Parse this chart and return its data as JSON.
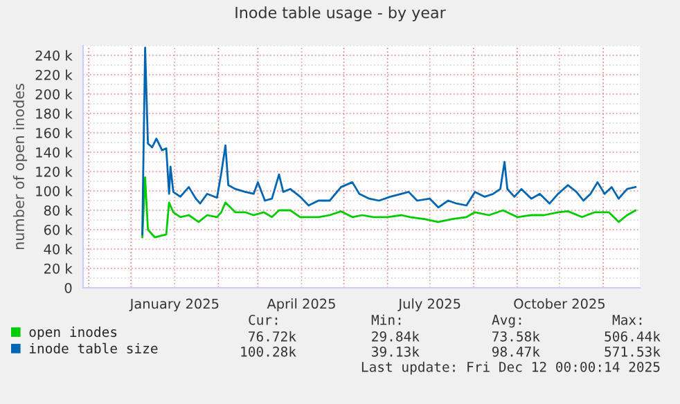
{
  "chart_data": {
    "type": "line",
    "title": "Inode table usage - by year",
    "ylabel": "number of open inodes",
    "xlim": [
      "2024-10-28",
      "2025-11-27"
    ],
    "xticks": [
      {
        "value": "2024-11-01",
        "label": null
      },
      {
        "value": "2024-12-01",
        "label": null
      },
      {
        "value": "2025-01-01",
        "label": "January 2025"
      },
      {
        "value": "2025-02-01",
        "label": null
      },
      {
        "value": "2025-03-01",
        "label": null
      },
      {
        "value": "2025-04-01",
        "label": "April 2025"
      },
      {
        "value": "2025-05-01",
        "label": null
      },
      {
        "value": "2025-06-01",
        "label": null
      },
      {
        "value": "2025-07-01",
        "label": "July 2025"
      },
      {
        "value": "2025-08-01",
        "label": null
      },
      {
        "value": "2025-09-01",
        "label": null
      },
      {
        "value": "2025-10-01",
        "label": "October 2025"
      },
      {
        "value": "2025-11-01",
        "label": null
      }
    ],
    "ylim": [
      0,
      250000
    ],
    "yticks": [
      {
        "value": 0,
        "label": "0"
      },
      {
        "value": 10000,
        "label": null
      },
      {
        "value": 20000,
        "label": "20 k"
      },
      {
        "value": 30000,
        "label": null
      },
      {
        "value": 40000,
        "label": "40 k"
      },
      {
        "value": 50000,
        "label": null
      },
      {
        "value": 60000,
        "label": "60 k"
      },
      {
        "value": 70000,
        "label": null
      },
      {
        "value": 80000,
        "label": "80 k"
      },
      {
        "value": 90000,
        "label": null
      },
      {
        "value": 100000,
        "label": "100 k"
      },
      {
        "value": 110000,
        "label": null
      },
      {
        "value": 120000,
        "label": "120 k"
      },
      {
        "value": 130000,
        "label": null
      },
      {
        "value": 140000,
        "label": "140 k"
      },
      {
        "value": 150000,
        "label": null
      },
      {
        "value": 160000,
        "label": "160 k"
      },
      {
        "value": 170000,
        "label": null
      },
      {
        "value": 180000,
        "label": "180 k"
      },
      {
        "value": 190000,
        "label": null
      },
      {
        "value": 200000,
        "label": "200 k"
      },
      {
        "value": 210000,
        "label": null
      },
      {
        "value": 220000,
        "label": "220 k"
      },
      {
        "value": 230000,
        "label": null
      },
      {
        "value": 240000,
        "label": "240 k"
      },
      {
        "value": 250000,
        "label": null
      }
    ],
    "grid": true,
    "legend": "bottom",
    "series": [
      {
        "name": "open inodes",
        "color": "#00cc00",
        "x": [
          "2024-12-09",
          "2024-12-11",
          "2024-12-13",
          "2024-12-18",
          "2024-12-23",
          "2024-12-26",
          "2024-12-28",
          "2024-12-31",
          "2025-01-05",
          "2025-01-11",
          "2025-01-18",
          "2025-01-24",
          "2025-01-31",
          "2025-02-03",
          "2025-02-06",
          "2025-02-13",
          "2025-02-20",
          "2025-02-26",
          "2025-03-05",
          "2025-03-11",
          "2025-03-16",
          "2025-03-24",
          "2025-03-31",
          "2025-04-06",
          "2025-04-13",
          "2025-04-21",
          "2025-04-29",
          "2025-05-07",
          "2025-05-14",
          "2025-05-22",
          "2025-06-01",
          "2025-06-11",
          "2025-06-17",
          "2025-06-27",
          "2025-07-07",
          "2025-07-17",
          "2025-07-27",
          "2025-08-02",
          "2025-08-12",
          "2025-08-22",
          "2025-09-01",
          "2025-09-11",
          "2025-09-20",
          "2025-09-30",
          "2025-10-07",
          "2025-10-17",
          "2025-10-26",
          "2025-11-05",
          "2025-11-12",
          "2025-11-18",
          "2025-11-24"
        ],
        "values": [
          52000,
          114000,
          60000,
          52000,
          54000,
          55000,
          88000,
          78000,
          73000,
          75000,
          68000,
          75000,
          73000,
          78000,
          88000,
          78000,
          78000,
          75000,
          78000,
          73000,
          80000,
          80000,
          73000,
          73000,
          73000,
          75000,
          79000,
          73000,
          75000,
          73000,
          73000,
          75000,
          73000,
          71000,
          68000,
          71000,
          73000,
          78000,
          75000,
          80000,
          73000,
          75000,
          75000,
          78000,
          79000,
          73000,
          78000,
          78000,
          68000,
          75000,
          80000
        ]
      },
      {
        "name": "inode table size",
        "color": "#0066b3",
        "x": [
          "2024-12-09",
          "2024-12-11",
          "2024-12-13",
          "2024-12-16",
          "2024-12-19",
          "2024-12-23",
          "2024-12-26",
          "2024-12-28",
          "2024-12-29",
          "2024-12-31",
          "2025-01-05",
          "2025-01-11",
          "2025-01-16",
          "2025-01-19",
          "2025-01-24",
          "2025-01-31",
          "2025-02-03",
          "2025-02-06",
          "2025-02-08",
          "2025-02-13",
          "2025-02-20",
          "2025-02-26",
          "2025-03-01",
          "2025-03-06",
          "2025-03-11",
          "2025-03-16",
          "2025-03-19",
          "2025-03-24",
          "2025-03-31",
          "2025-04-06",
          "2025-04-13",
          "2025-04-21",
          "2025-04-29",
          "2025-05-07",
          "2025-05-12",
          "2025-05-19",
          "2025-05-26",
          "2025-06-03",
          "2025-06-11",
          "2025-06-16",
          "2025-06-22",
          "2025-07-01",
          "2025-07-07",
          "2025-07-14",
          "2025-07-20",
          "2025-07-27",
          "2025-08-02",
          "2025-08-09",
          "2025-08-15",
          "2025-08-20",
          "2025-08-23",
          "2025-08-25",
          "2025-08-30",
          "2025-09-04",
          "2025-09-11",
          "2025-09-17",
          "2025-09-24",
          "2025-09-30",
          "2025-10-07",
          "2025-10-13",
          "2025-10-18",
          "2025-10-23",
          "2025-10-28",
          "2025-11-02",
          "2025-11-07",
          "2025-11-12",
          "2025-11-18",
          "2025-11-24"
        ],
        "values": [
          55000,
          248000,
          149000,
          145000,
          154000,
          142000,
          144000,
          97000,
          125000,
          99000,
          94000,
          104000,
          92000,
          87000,
          97000,
          93000,
          118000,
          147000,
          106000,
          102000,
          99000,
          97000,
          109000,
          90000,
          92000,
          117000,
          99000,
          102000,
          94000,
          85000,
          90000,
          90000,
          104000,
          109000,
          97000,
          92000,
          90000,
          94000,
          97000,
          99000,
          90000,
          92000,
          83000,
          90000,
          87000,
          85000,
          99000,
          94000,
          97000,
          102000,
          130000,
          102000,
          94000,
          102000,
          92000,
          97000,
          87000,
          97000,
          106000,
          99000,
          90000,
          97000,
          109000,
          97000,
          104000,
          92000,
          102000,
          104000
        ]
      }
    ],
    "annotations": [
      "Cur:",
      "Min:",
      "Avg:",
      "Max:",
      "76.72k",
      "29.84k",
      "73.58k",
      "506.44k",
      "100.28k",
      "39.13k",
      "98.47k",
      "571.53k",
      "Last update: Fri Dec 12 00:00:14 2025"
    ]
  }
}
